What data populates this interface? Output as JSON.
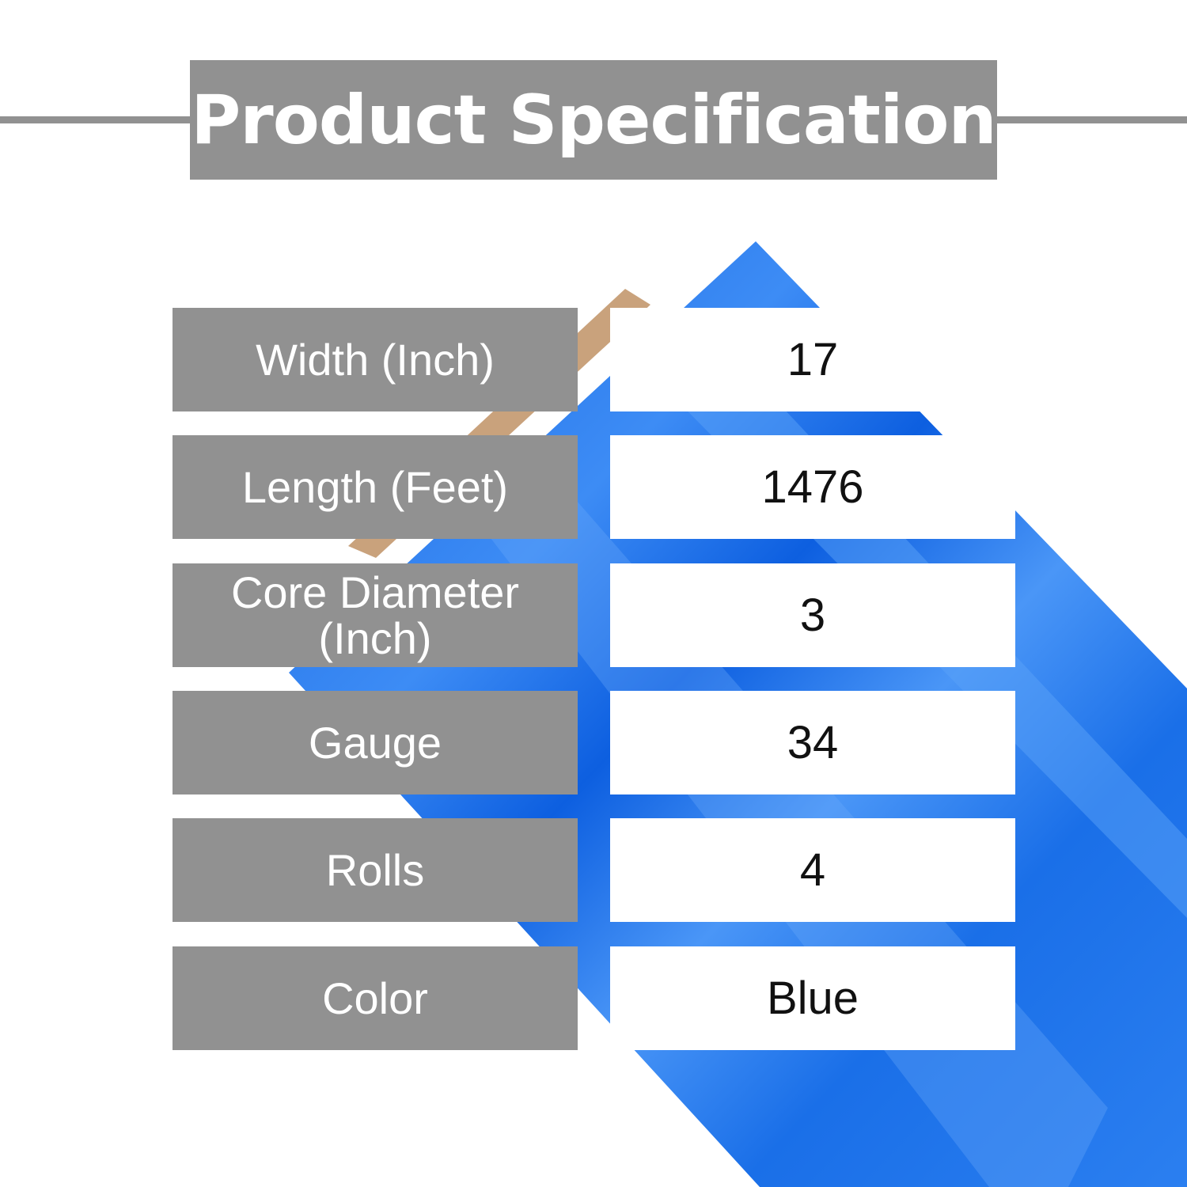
{
  "header": {
    "title": "Product Specification"
  },
  "colors": {
    "panel": "#919191",
    "roll": "#1a6fe8",
    "core": "#c9a27c"
  },
  "product_image": {
    "icon": "blue-stretch-wrap-roll"
  },
  "specs": [
    {
      "label": "Width (Inch)",
      "value": "17"
    },
    {
      "label": "Length (Feet)",
      "value": "1476"
    },
    {
      "label": "Core Diameter (Inch)",
      "value": "3"
    },
    {
      "label": "Gauge",
      "value": "34"
    },
    {
      "label": "Rolls",
      "value": "4"
    },
    {
      "label": "Color",
      "value": "Blue"
    }
  ]
}
